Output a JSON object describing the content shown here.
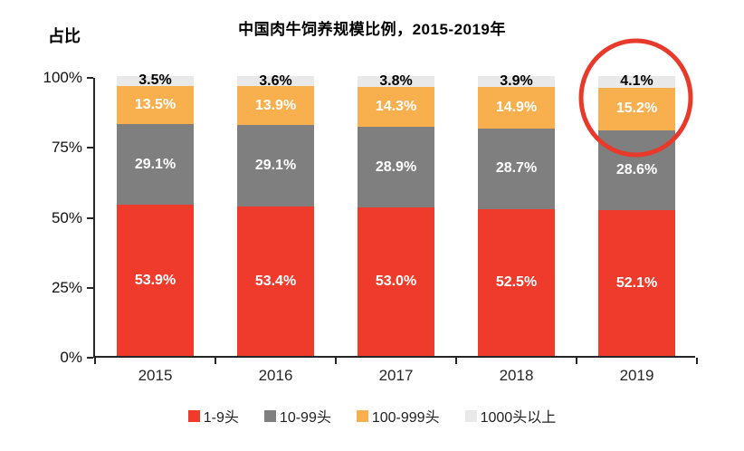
{
  "window": {
    "background": "#ffffff"
  },
  "chart_data": {
    "type": "bar",
    "stacked": true,
    "title": "中国肉牛饲养规模比例，2015-2019年",
    "y_axis_title": "占比",
    "categories": [
      "2015",
      "2016",
      "2017",
      "2018",
      "2019"
    ],
    "series": [
      {
        "name": "1-9头",
        "color": "#ee3b2b",
        "label_color": "#ffffff",
        "values": [
          53.9,
          53.4,
          53.0,
          52.5,
          52.1
        ]
      },
      {
        "name": "10-99头",
        "color": "#7f7f7f",
        "label_color": "#ffffff",
        "values": [
          29.1,
          29.1,
          28.9,
          28.7,
          28.6
        ]
      },
      {
        "name": "100-999头",
        "color": "#f8b04e",
        "label_color": "#ffffff",
        "values": [
          13.5,
          13.9,
          14.3,
          14.9,
          15.2
        ]
      },
      {
        "name": "1000头以上",
        "color": "#e9e9e9",
        "label_color": "#000000",
        "values": [
          3.5,
          3.6,
          3.8,
          3.9,
          4.1
        ]
      }
    ],
    "value_suffix": "%",
    "ylim": [
      0,
      100
    ],
    "y_ticks": [
      "0%",
      "25%",
      "50%",
      "75%",
      "100%"
    ],
    "grid": false,
    "legend_position": "bottom",
    "axis_color": "#262626",
    "annotation": {
      "shape": "circle",
      "target_category": "2019",
      "color": "#e8392b"
    }
  }
}
